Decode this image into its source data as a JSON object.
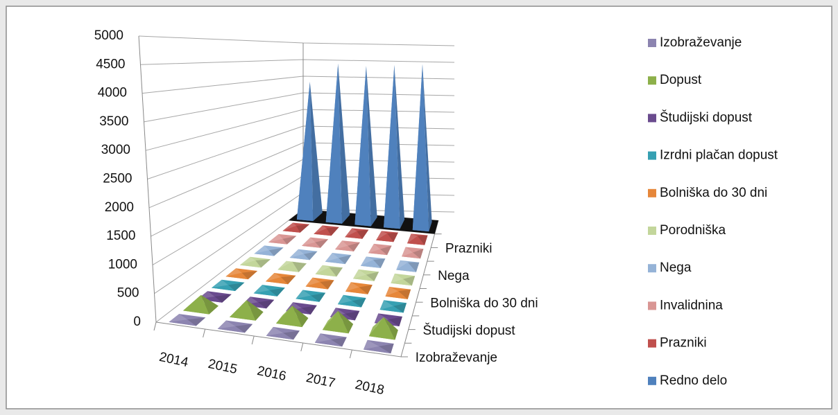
{
  "chart_data": {
    "type": "pyramid3d",
    "categories": [
      "2014",
      "2015",
      "2016",
      "2017",
      "2018"
    ],
    "series": [
      {
        "name": "Izobraževanje",
        "color": "#8c84b0",
        "values": [
          5,
          5,
          5,
          5,
          5
        ]
      },
      {
        "name": "Dopust",
        "color": "#8db04a",
        "values": [
          250,
          270,
          280,
          300,
          300
        ]
      },
      {
        "name": "Študijski dopust",
        "color": "#6a4b8e",
        "values": [
          5,
          5,
          5,
          5,
          5
        ]
      },
      {
        "name": "Izrdni plačan dopust",
        "color": "#36a0b2",
        "values": [
          5,
          5,
          5,
          5,
          5
        ]
      },
      {
        "name": "Bolniška do 30 dni",
        "color": "#e6873a",
        "values": [
          20,
          30,
          30,
          20,
          40
        ]
      },
      {
        "name": "Porodniška",
        "color": "#c3d69b",
        "values": [
          40,
          110,
          80,
          10,
          10
        ]
      },
      {
        "name": "Nega",
        "color": "#95b3d7",
        "values": [
          10,
          10,
          10,
          60,
          90
        ]
      },
      {
        "name": "Invalidnina",
        "color": "#d99694",
        "values": [
          5,
          5,
          5,
          5,
          5
        ]
      },
      {
        "name": "Prazniki",
        "color": "#c0504d",
        "values": [
          50,
          60,
          60,
          80,
          90
        ]
      },
      {
        "name": "Redno delo",
        "color": "#4f81bd",
        "values": [
          3900,
          4500,
          4500,
          4600,
          4700
        ]
      }
    ],
    "ylim": [
      0,
      5000
    ],
    "yticks": [
      0,
      500,
      1000,
      1500,
      2000,
      2500,
      3000,
      3500,
      4000,
      4500,
      5000
    ],
    "grid": true,
    "legend": "right"
  }
}
